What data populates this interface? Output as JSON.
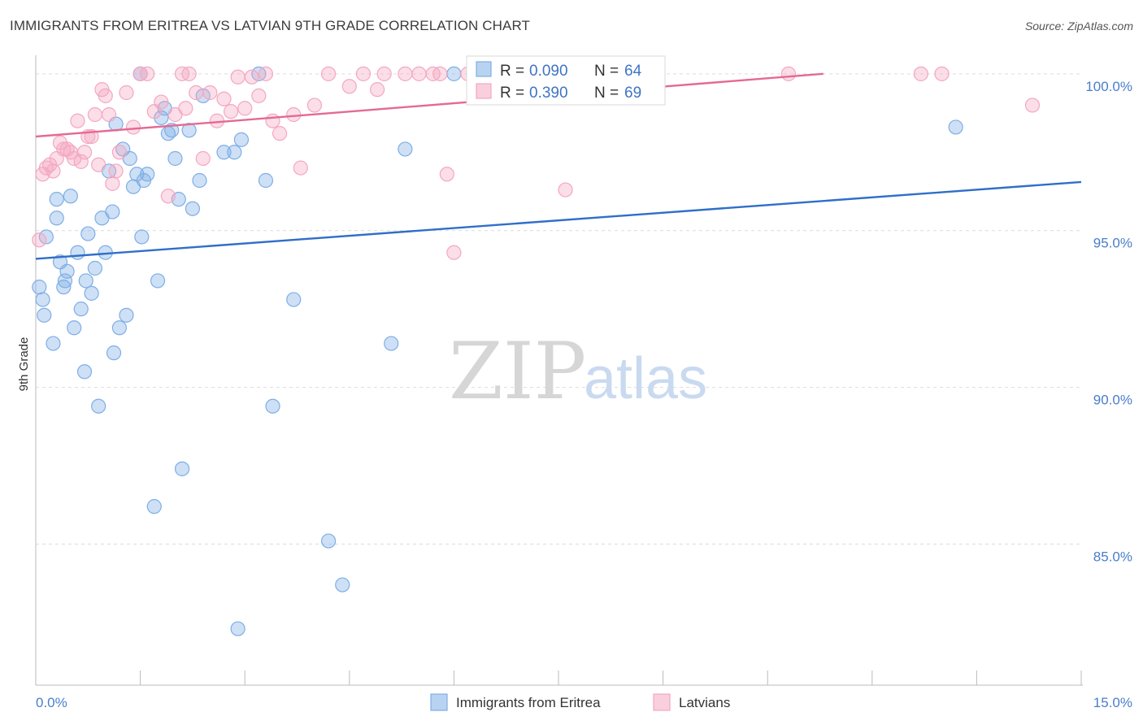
{
  "title": "IMMIGRANTS FROM ERITREA VS LATVIAN 9TH GRADE CORRELATION CHART",
  "source": "Source: ZipAtlas.com",
  "watermark": {
    "zip": "ZIP",
    "atlas": "atlas"
  },
  "chart_data": {
    "type": "scatter",
    "xlabel": "",
    "ylabel": "9th Grade",
    "xlim": [
      0,
      15
    ],
    "ylim": [
      80.5,
      100.8
    ],
    "x_tick_labels": {
      "left": "0.0%",
      "right": "15.0%"
    },
    "y_ticks": [
      {
        "value": 100,
        "label": "100.0%"
      },
      {
        "value": 95,
        "label": "95.0%"
      },
      {
        "value": 90,
        "label": "90.0%"
      },
      {
        "value": 85,
        "label": "85.0%"
      }
    ],
    "grid": true,
    "legend": {
      "position": "top-center",
      "rows": [
        {
          "r_label": "R = ",
          "r_value": "0.090",
          "n_label": "N = ",
          "n_value": "64"
        },
        {
          "r_label": "R = ",
          "r_value": "0.390",
          "n_label": "N = ",
          "n_value": "69"
        }
      ]
    },
    "series": [
      {
        "name": "Immigrants from Eritrea",
        "color": "#7eaee6",
        "line_color": "#2f6fc8",
        "trend": {
          "x": [
            0,
            15
          ],
          "y": [
            94.1,
            96.55
          ]
        },
        "points": [
          [
            0.05,
            93.2
          ],
          [
            0.1,
            92.8
          ],
          [
            0.12,
            92.3
          ],
          [
            0.15,
            94.8
          ],
          [
            0.25,
            91.4
          ],
          [
            0.3,
            95.4
          ],
          [
            0.3,
            96.0
          ],
          [
            0.35,
            94.0
          ],
          [
            0.4,
            93.2
          ],
          [
            0.42,
            93.4
          ],
          [
            0.45,
            93.7
          ],
          [
            0.5,
            96.1
          ],
          [
            0.55,
            91.9
          ],
          [
            0.6,
            94.3
          ],
          [
            0.65,
            92.5
          ],
          [
            0.7,
            90.5
          ],
          [
            0.72,
            93.4
          ],
          [
            0.75,
            94.9
          ],
          [
            0.8,
            93.0
          ],
          [
            0.85,
            93.8
          ],
          [
            0.9,
            89.4
          ],
          [
            0.95,
            95.4
          ],
          [
            1.0,
            94.3
          ],
          [
            1.05,
            96.9
          ],
          [
            1.1,
            95.6
          ],
          [
            1.12,
            91.1
          ],
          [
            1.15,
            98.4
          ],
          [
            1.2,
            91.9
          ],
          [
            1.25,
            97.6
          ],
          [
            1.3,
            92.3
          ],
          [
            1.35,
            97.3
          ],
          [
            1.4,
            96.4
          ],
          [
            1.45,
            96.8
          ],
          [
            1.5,
            100.0
          ],
          [
            1.52,
            94.8
          ],
          [
            1.55,
            96.6
          ],
          [
            1.6,
            96.8
          ],
          [
            1.7,
            86.2
          ],
          [
            1.75,
            93.4
          ],
          [
            1.8,
            98.6
          ],
          [
            1.85,
            98.9
          ],
          [
            1.9,
            98.1
          ],
          [
            1.95,
            98.2
          ],
          [
            2.0,
            97.3
          ],
          [
            2.05,
            96.0
          ],
          [
            2.1,
            87.4
          ],
          [
            2.2,
            98.2
          ],
          [
            2.25,
            95.7
          ],
          [
            2.35,
            96.6
          ],
          [
            2.4,
            99.3
          ],
          [
            2.7,
            97.5
          ],
          [
            2.85,
            97.5
          ],
          [
            2.9,
            82.3
          ],
          [
            2.95,
            97.9
          ],
          [
            3.2,
            100.0
          ],
          [
            3.3,
            96.6
          ],
          [
            3.4,
            89.4
          ],
          [
            3.7,
            92.8
          ],
          [
            4.2,
            85.1
          ],
          [
            4.4,
            83.7
          ],
          [
            5.1,
            91.4
          ],
          [
            5.3,
            97.6
          ],
          [
            6.0,
            100.0
          ],
          [
            13.2,
            98.3
          ]
        ]
      },
      {
        "name": "Latvians",
        "color": "#f4a7c1",
        "line_color": "#e46a92",
        "trend": {
          "x": [
            0,
            11.3
          ],
          "y": [
            98.0,
            100.0
          ]
        },
        "points": [
          [
            0.05,
            94.7
          ],
          [
            0.1,
            96.8
          ],
          [
            0.15,
            97.0
          ],
          [
            0.2,
            97.1
          ],
          [
            0.25,
            96.9
          ],
          [
            0.3,
            97.3
          ],
          [
            0.35,
            97.8
          ],
          [
            0.4,
            97.6
          ],
          [
            0.45,
            97.6
          ],
          [
            0.5,
            97.5
          ],
          [
            0.55,
            97.3
          ],
          [
            0.6,
            98.5
          ],
          [
            0.65,
            97.2
          ],
          [
            0.7,
            97.5
          ],
          [
            0.75,
            98.0
          ],
          [
            0.8,
            98.0
          ],
          [
            0.85,
            98.7
          ],
          [
            0.9,
            97.1
          ],
          [
            0.95,
            99.5
          ],
          [
            1.0,
            99.3
          ],
          [
            1.05,
            98.7
          ],
          [
            1.1,
            96.5
          ],
          [
            1.15,
            96.9
          ],
          [
            1.2,
            97.5
          ],
          [
            1.3,
            99.4
          ],
          [
            1.4,
            98.3
          ],
          [
            1.5,
            100.0
          ],
          [
            1.6,
            100.0
          ],
          [
            1.7,
            98.8
          ],
          [
            1.8,
            99.1
          ],
          [
            1.9,
            96.1
          ],
          [
            2.0,
            98.7
          ],
          [
            2.1,
            100.0
          ],
          [
            2.15,
            98.9
          ],
          [
            2.2,
            100.0
          ],
          [
            2.3,
            99.4
          ],
          [
            2.4,
            97.3
          ],
          [
            2.5,
            99.4
          ],
          [
            2.6,
            98.5
          ],
          [
            2.7,
            99.2
          ],
          [
            2.8,
            98.8
          ],
          [
            2.9,
            99.9
          ],
          [
            3.0,
            98.9
          ],
          [
            3.1,
            99.9
          ],
          [
            3.2,
            99.3
          ],
          [
            3.3,
            100.0
          ],
          [
            3.4,
            98.5
          ],
          [
            3.5,
            98.1
          ],
          [
            3.7,
            98.7
          ],
          [
            3.8,
            97.0
          ],
          [
            4.0,
            99.0
          ],
          [
            4.2,
            100.0
          ],
          [
            4.5,
            99.6
          ],
          [
            4.7,
            100.0
          ],
          [
            4.9,
            99.5
          ],
          [
            5.0,
            100.0
          ],
          [
            5.3,
            100.0
          ],
          [
            5.5,
            100.0
          ],
          [
            5.7,
            100.0
          ],
          [
            5.8,
            100.0
          ],
          [
            5.9,
            96.8
          ],
          [
            6.0,
            94.3
          ],
          [
            6.2,
            100.0
          ],
          [
            6.4,
            99.3
          ],
          [
            7.6,
            96.3
          ],
          [
            10.8,
            100.0
          ],
          [
            12.7,
            100.0
          ],
          [
            13.0,
            100.0
          ],
          [
            14.3,
            99.0
          ]
        ]
      }
    ]
  }
}
